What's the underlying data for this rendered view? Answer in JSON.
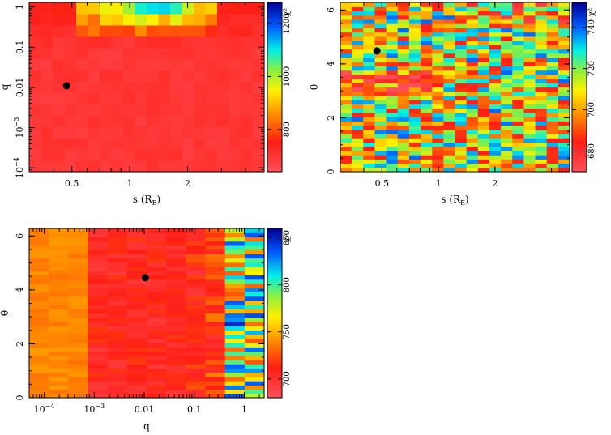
{
  "chart_data": [
    {
      "id": "panel-1",
      "type": "heatmap",
      "title": "",
      "xlabel": "s (R_E)",
      "ylabel": "q",
      "xscale": "log",
      "yscale": "log",
      "xlim": [
        0.3,
        5.0
      ],
      "ylim": [
        8e-05,
        1.3
      ],
      "x_ticks": [
        {
          "value": 0.5,
          "label": "0.5"
        },
        {
          "value": 1,
          "label": "1"
        },
        {
          "value": 2,
          "label": "2"
        }
      ],
      "y_ticks": [
        {
          "value": 0.0001,
          "label": "10^-4"
        },
        {
          "value": 0.001,
          "label": "10^-3"
        },
        {
          "value": 0.01,
          "label": "0.01"
        },
        {
          "value": 0.1,
          "label": "0.1"
        },
        {
          "value": 1,
          "label": "1"
        }
      ],
      "colorbar": {
        "label": "χ²",
        "min": 640,
        "max": 1280,
        "ticks": [
          {
            "value": 800,
            "label": "800"
          },
          {
            "value": 1000,
            "label": "1000"
          },
          {
            "value": 1200,
            "label": "1200"
          }
        ]
      },
      "grid": {
        "cols": 20,
        "rows": 15,
        "seed": 11,
        "pattern": "s-q"
      },
      "best_fit": {
        "x": 0.47,
        "y": 0.011
      }
    },
    {
      "id": "panel-2",
      "type": "heatmap",
      "title": "",
      "xlabel": "s (R_E)",
      "ylabel": "θ",
      "xscale": "log",
      "yscale": "linear",
      "xlim": [
        0.3,
        5.0
      ],
      "ylim": [
        0,
        6.28
      ],
      "x_ticks": [
        {
          "value": 0.5,
          "label": "0.5"
        },
        {
          "value": 1,
          "label": "1"
        },
        {
          "value": 2,
          "label": "2"
        }
      ],
      "y_ticks": [
        {
          "value": 0,
          "label": "0"
        },
        {
          "value": 2,
          "label": "2"
        },
        {
          "value": 4,
          "label": "4"
        },
        {
          "value": 6,
          "label": "6"
        }
      ],
      "colorbar": {
        "label": "χ²",
        "min": 670,
        "max": 752,
        "ticks": [
          {
            "value": 680,
            "label": "680"
          },
          {
            "value": 700,
            "label": "700"
          },
          {
            "value": 720,
            "label": "720"
          },
          {
            "value": 740,
            "label": "740"
          }
        ]
      },
      "grid": {
        "cols": 20,
        "rows": 40,
        "seed": 23,
        "pattern": "s-theta"
      },
      "best_fit": {
        "x": 0.47,
        "y": 4.48
      }
    },
    {
      "id": "panel-3",
      "type": "heatmap",
      "title": "",
      "xlabel": "q",
      "ylabel": "θ",
      "xscale": "log",
      "yscale": "linear",
      "xlim": [
        5e-05,
        2.5
      ],
      "ylim": [
        0,
        6.28
      ],
      "x_ticks": [
        {
          "value": 0.0001,
          "label": "10^-4"
        },
        {
          "value": 0.001,
          "label": "10^-3"
        },
        {
          "value": 0.01,
          "label": "0.01"
        },
        {
          "value": 0.1,
          "label": "0.1"
        },
        {
          "value": 1,
          "label": "1"
        }
      ],
      "y_ticks": [
        {
          "value": 0,
          "label": "0"
        },
        {
          "value": 2,
          "label": "2"
        },
        {
          "value": 4,
          "label": "4"
        },
        {
          "value": 6,
          "label": "6"
        }
      ],
      "colorbar": {
        "label": "χ²",
        "min": 680,
        "max": 860,
        "ticks": [
          {
            "value": 700,
            "label": "700"
          },
          {
            "value": 750,
            "label": "750"
          },
          {
            "value": 800,
            "label": "800"
          },
          {
            "value": 850,
            "label": "850"
          }
        ]
      },
      "grid": {
        "cols": 12,
        "rows": 40,
        "seed": 37,
        "pattern": "q-theta"
      },
      "best_fit": {
        "x": 0.0105,
        "y": 4.45
      }
    }
  ]
}
